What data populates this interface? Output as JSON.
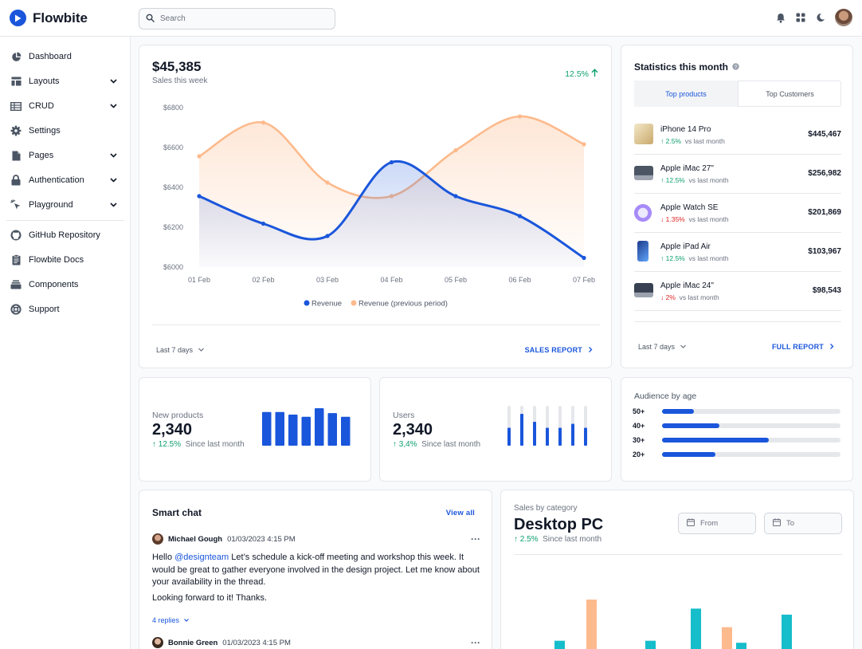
{
  "app": {
    "name": "Flowbite"
  },
  "search": {
    "placeholder": "Search"
  },
  "sidebar": {
    "items": [
      {
        "label": "Dashboard",
        "icon": "pie-chart-icon",
        "chevron": false
      },
      {
        "label": "Layouts",
        "icon": "layout-icon",
        "chevron": true
      },
      {
        "label": "CRUD",
        "icon": "table-icon",
        "chevron": true
      },
      {
        "label": "Settings",
        "icon": "gear-icon",
        "chevron": false
      },
      {
        "label": "Pages",
        "icon": "document-icon",
        "chevron": true
      },
      {
        "label": "Authentication",
        "icon": "lock-icon",
        "chevron": true
      },
      {
        "label": "Playground",
        "icon": "cursor-click-icon",
        "chevron": true
      }
    ],
    "secondary": [
      {
        "label": "GitHub Repository",
        "icon": "github-icon"
      },
      {
        "label": "Flowbite Docs",
        "icon": "clipboard-icon"
      },
      {
        "label": "Components",
        "icon": "collection-icon"
      },
      {
        "label": "Support",
        "icon": "lifebuoy-icon"
      }
    ]
  },
  "sales": {
    "amount": "$45,385",
    "subtitle": "Sales this week",
    "change": "12.5%",
    "period": "Last 7 days",
    "report": "SALES REPORT"
  },
  "chart_data": {
    "type": "area",
    "x": [
      "01 Feb",
      "02 Feb",
      "03 Feb",
      "04 Feb",
      "05 Feb",
      "06 Feb",
      "07 Feb"
    ],
    "yticks": [
      "$6800",
      "$6600",
      "$6400",
      "$6200",
      "$6000"
    ],
    "ylim": [
      6000,
      6800
    ],
    "series": [
      {
        "name": "Revenue",
        "color": "#1a56db",
        "values": [
          6356,
          6218,
          6156,
          6526,
          6356,
          6256,
          6046
        ]
      },
      {
        "name": "Revenue (previous period)",
        "color": "#fdba8c",
        "values": [
          6556,
          6725,
          6424,
          6356,
          6586,
          6756,
          6616
        ]
      }
    ],
    "legend": "bottom",
    "grid": true
  },
  "stats": {
    "title": "Statistics this month",
    "tabs": [
      "Top products",
      "Top Customers"
    ],
    "products": [
      {
        "name": "iPhone 14 Pro",
        "change": "2.5%",
        "dir": "up",
        "note": "vs last month",
        "price": "$445,467",
        "thumb": "#e8d7b0"
      },
      {
        "name": "Apple iMac 27\"",
        "change": "12.5%",
        "dir": "up",
        "note": "vs last month",
        "price": "$256,982",
        "thumb": "#6b7280"
      },
      {
        "name": "Apple Watch SE",
        "change": "1.35%",
        "dir": "down",
        "note": "vs last month",
        "price": "$201,869",
        "thumb": "#a78bfa"
      },
      {
        "name": "Apple iPad Air",
        "change": "12.5%",
        "dir": "up",
        "note": "vs last month",
        "price": "$103,967",
        "thumb": "#1e40af"
      },
      {
        "name": "Apple iMac 24\"",
        "change": "2%",
        "dir": "down",
        "note": "vs last month",
        "price": "$98,543",
        "thumb": "#4b5563"
      }
    ],
    "period": "Last 7 days",
    "report": "FULL REPORT"
  },
  "new_products": {
    "label": "New products",
    "value": "2,340",
    "change": "12.5%",
    "note": "Since last month",
    "bars": [
      0.9,
      0.9,
      0.83,
      0.77,
      1.0,
      0.87,
      0.77
    ]
  },
  "users": {
    "label": "Users",
    "value": "2,340",
    "change": "3,4%",
    "note": "Since last month",
    "bars": [
      0.45,
      0.8,
      0.6,
      0.45,
      0.45,
      0.55,
      0.45
    ]
  },
  "audience": {
    "title": "Audience by age",
    "rows": [
      {
        "label": "50+",
        "value": 0.18
      },
      {
        "label": "40+",
        "value": 0.32
      },
      {
        "label": "30+",
        "value": 0.6
      },
      {
        "label": "20+",
        "value": 0.3
      }
    ]
  },
  "chat": {
    "title": "Smart chat",
    "view_all": "View all",
    "messages": [
      {
        "author": "Michael Gough",
        "time": "01/03/2023 4:15 PM",
        "mention": "@designteam",
        "text": "Let’s schedule a kick-off meeting and workshop this week. It would be great to gather everyone involved in the design project. Let me know about your availability in the thread.",
        "greeting": "Hello",
        "text2": "Looking forward to it! Thanks.",
        "replies": "4 replies"
      },
      {
        "author": "Bonnie Green",
        "time": "01/03/2023 4:15 PM"
      }
    ]
  },
  "category": {
    "label": "Sales by category",
    "title": "Desktop PC",
    "change": "2.5%",
    "note": "Since last month",
    "from": "From",
    "to": "To",
    "bars": [
      {
        "value": 0.18,
        "color": "#16bdca"
      },
      {
        "value": 1.0,
        "color": "#fdba8c"
      },
      {
        "value": 0.18,
        "color": "#16bdca"
      },
      {
        "value": 0.82,
        "color": "#16bdca"
      },
      {
        "value": 0.45,
        "color": "#fdba8c"
      },
      {
        "value": 0.14,
        "color": "#16bdca"
      },
      {
        "value": 0.7,
        "color": "#16bdca"
      }
    ]
  }
}
